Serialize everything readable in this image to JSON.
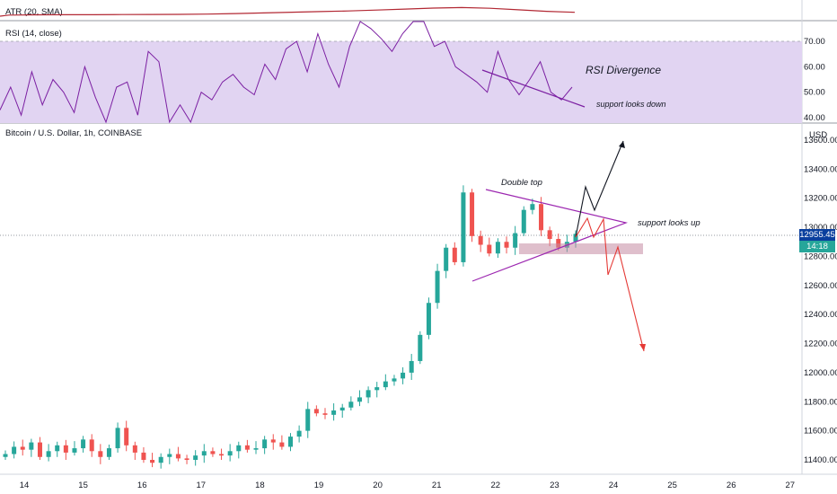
{
  "panes": {
    "atr_label": "ATR (20, SMA)",
    "rsi_label": "RSI (14, close)",
    "price_label": "Bitcoin / U.S. Dollar, 1h, COINBASE"
  },
  "price_axis": {
    "currency": "USD",
    "last_price": "12955.45",
    "countdown": "14:18",
    "last_price_color": "#0a3f9e",
    "countdown_color": "#26a69a"
  },
  "annotations": {
    "double_top": "Double top",
    "support_up": "support looks up",
    "rsi_divergence": "RSI Divergence",
    "support_down": "support looks down"
  },
  "colors": {
    "up": "#26a69a",
    "down": "#ef5350",
    "atr_line": "#b22833",
    "rsi_line": "#7b1fa2",
    "rsi_band": "#e1d4f2",
    "triangle": "#9c27b0",
    "support_zone": "#c48ba3",
    "bull_path": "#131722",
    "bear_path": "#e53935"
  },
  "chart_data": [
    {
      "type": "line",
      "title": "ATR (20, SMA)",
      "series": [
        {
          "name": "ATR (20, SMA)",
          "values": [
            0.3,
            0.32,
            0.33,
            0.33,
            0.34,
            0.35,
            0.36,
            0.38,
            0.42,
            0.47,
            0.53,
            0.58,
            0.63,
            0.7,
            0.78,
            0.86,
            0.9,
            0.84,
            0.72,
            0.6,
            0.52
          ]
        }
      ]
    },
    {
      "type": "line",
      "title": "RSI (14, close)",
      "yticks": [
        40.0,
        50.0,
        60.0,
        70.0
      ],
      "band": [
        30,
        70
      ],
      "series": [
        {
          "name": "RSI (14, close)",
          "values": [
            43,
            52,
            41,
            58,
            45,
            55,
            50,
            42,
            60,
            48,
            36,
            52,
            54,
            41,
            66,
            62,
            38,
            45,
            35,
            50,
            47,
            54,
            57,
            52,
            49,
            61,
            55,
            67,
            70,
            58,
            73,
            61,
            52,
            68,
            80,
            75,
            71,
            66,
            73,
            78,
            85,
            68,
            70,
            60,
            57,
            54,
            50,
            66,
            55,
            49,
            55,
            62,
            50,
            47,
            52
          ]
        }
      ],
      "annotations": [
        "RSI Divergence",
        "support looks down"
      ]
    },
    {
      "type": "candlestick",
      "title": "Bitcoin / U.S. Dollar, 1h, COINBASE",
      "x_ticks": [
        "14",
        "15",
        "16",
        "17",
        "18",
        "19",
        "20",
        "21",
        "22",
        "23",
        "24",
        "25",
        "26",
        "27"
      ],
      "y_ticks": [
        11400.0,
        11600.0,
        11800.0,
        12000.0,
        12200.0,
        12400.0,
        12600.0,
        12800.0,
        13000.0,
        13200.0,
        13400.0,
        13600.0
      ],
      "ylim": [
        11340,
        13680
      ],
      "series": [
        {
          "name": "close",
          "values": [
            11440,
            11490,
            11470,
            11520,
            11420,
            11460,
            11500,
            11450,
            11480,
            11540,
            11460,
            11420,
            11480,
            11620,
            11500,
            11450,
            11400,
            11380,
            11420,
            11440,
            11410,
            11400,
            11430,
            11460,
            11440,
            11430,
            11460,
            11500,
            11470,
            11480,
            11540,
            11520,
            11490,
            11560,
            11600,
            11750,
            11720,
            11710,
            11740,
            11760,
            11800,
            11830,
            11880,
            11900,
            11940,
            11960,
            12000,
            12080,
            12260,
            12480,
            12700,
            12860,
            12760,
            13240,
            12940,
            12880,
            12820,
            12900,
            12860,
            12960,
            13120,
            13160,
            12980,
            12920,
            12860,
            12900,
            12955
          ]
        }
      ],
      "last_price": 12955.45,
      "annotations": [
        "Double top",
        "support looks up"
      ]
    }
  ]
}
